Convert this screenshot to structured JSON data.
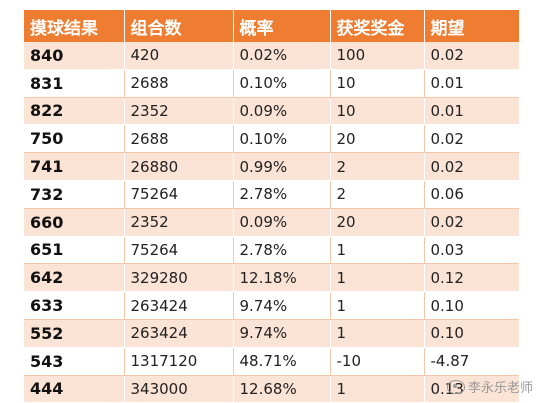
{
  "table": {
    "headers": [
      "摸球结果",
      "组合数",
      "概率",
      "获奖奖金",
      "期望"
    ],
    "rows": [
      [
        "840",
        "420",
        "0.02%",
        "100",
        "0.02"
      ],
      [
        "831",
        "2688",
        "0.10%",
        "10",
        "0.01"
      ],
      [
        "822",
        "2352",
        "0.09%",
        "10",
        "0.01"
      ],
      [
        "750",
        "2688",
        "0.10%",
        "20",
        "0.02"
      ],
      [
        "741",
        "26880",
        "0.99%",
        "2",
        "0.02"
      ],
      [
        "732",
        "75264",
        "2.78%",
        "2",
        "0.06"
      ],
      [
        "660",
        "2352",
        "0.09%",
        "20",
        "0.02"
      ],
      [
        "651",
        "75264",
        "2.78%",
        "1",
        "0.03"
      ],
      [
        "642",
        "329280",
        "12.18%",
        "1",
        "0.12"
      ],
      [
        "633",
        "263424",
        "9.74%",
        "1",
        "0.10"
      ],
      [
        "552",
        "263424",
        "9.74%",
        "1",
        "0.10"
      ],
      [
        "543",
        "1317120",
        "48.71%",
        "-10",
        "-4.87"
      ],
      [
        "444",
        "343000",
        "12.68%",
        "1",
        "0.13"
      ]
    ]
  },
  "watermark": {
    "text": "李永乐老师",
    "icon": "weibo-icon"
  },
  "colors": {
    "header_bg": "#ee7d31",
    "band_odd": "#fbe3d5",
    "band_even": "#ffffff"
  }
}
